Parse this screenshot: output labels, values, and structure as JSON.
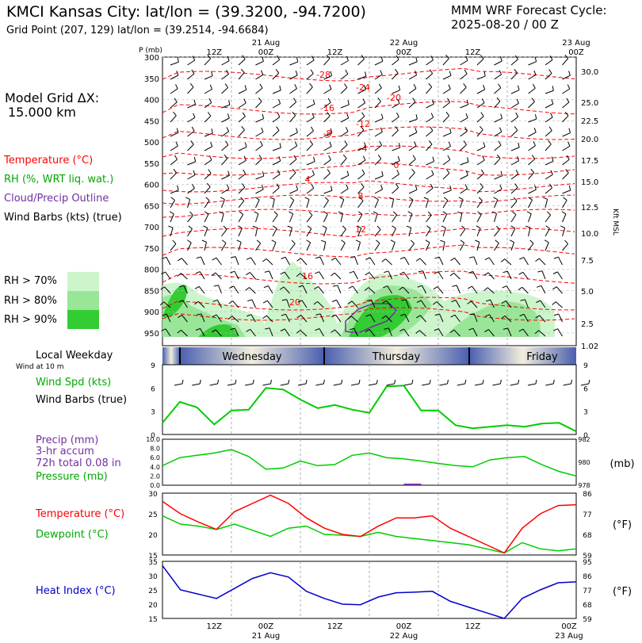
{
  "header": {
    "title": "KMCI Kansas City:  lat/lon = (39.3200, -94.7200)",
    "subtitle": "Grid Point (207, 129) lat/lon = (39.2514, -94.6684)",
    "model_line1": "MMM WRF Forecast Cycle:",
    "model_line2": "2025-08-20 / 00  Z"
  },
  "left_panel": {
    "grid_dx_line1": "Model Grid ΔX:",
    "grid_dx_line2": "15.000 km",
    "temperature_label": "Temperature (°C)",
    "rh_label": "RH (%, WRT liq. wat.)",
    "cloud_label": "Cloud/Precip Outline",
    "wind_label": "Wind Barbs (kts) (true)",
    "rh70": "RH > 70%",
    "rh80": "RH > 80%",
    "rh90": "RH > 90%",
    "weekday_label": "Local Weekday",
    "wind10_label": "Wind at 10 m",
    "wspd_label": "Wind Spd (kts)",
    "wbarb_label": "Wind Barbs (true)",
    "precip_label": "Precip (mm)",
    "accum_label": "3-hr accum",
    "total_label": "72h total 0.08 in",
    "pressure_label": "Pressure (mb)",
    "temp2_label": "Temperature (°C)",
    "dew_label": "Dewpoint (°C)",
    "heat_label": "Heat Index (°C)"
  },
  "colors": {
    "temperature": "#ff0000",
    "rh": "#00cc00",
    "cloud": "#7030a0",
    "pressure": "#00cc00",
    "dewpoint": "#00cc00",
    "heat": "#0000cc",
    "rh70": "#ccf5cc",
    "rh80": "#99e699",
    "rh90": "#33cc33"
  },
  "chart_data": [
    {
      "type": "line",
      "name": "cross-section",
      "pressure_axis_label": "P (mb)",
      "pressure_levels": [
        300,
        350,
        400,
        450,
        500,
        550,
        600,
        650,
        700,
        750,
        800,
        850,
        900,
        950
      ],
      "height_axis_label": "Kft MSL",
      "height_ticks": [
        "30.0",
        "25.0",
        "22.5",
        "20.0",
        "17.5",
        "15.0",
        "12.5",
        "10.0",
        "7.5",
        "5.0",
        "2.5",
        "1.02"
      ],
      "time_top_ticks": [
        "12Z",
        "21 Aug",
        "00Z",
        "12Z",
        "22 Aug",
        "00Z",
        "12Z",
        "23 Aug",
        "00Z"
      ],
      "temperature_contour_labels": [
        "-28",
        "-24",
        "-20",
        "-16",
        "-12",
        "-8",
        "-4",
        "0",
        "4",
        "8",
        "12",
        "16",
        "20"
      ],
      "weekdays": [
        "Wednesday",
        "Thursday",
        "Friday"
      ]
    },
    {
      "type": "line",
      "name": "wind speed",
      "y_ticks": [
        0,
        3,
        6,
        9
      ],
      "ylim": [
        0,
        9
      ],
      "x_hours": [
        0,
        3,
        6,
        9,
        12,
        15,
        18,
        21,
        24,
        27,
        30,
        33,
        36,
        39,
        42,
        45,
        48,
        51,
        54,
        57,
        60,
        63,
        66,
        69,
        72
      ],
      "values": [
        1.5,
        4.2,
        3.5,
        1.3,
        3.1,
        3.2,
        6.0,
        5.8,
        4.5,
        3.4,
        3.8,
        3.2,
        2.8,
        6.2,
        6.3,
        3.1,
        3.1,
        1.2,
        0.8,
        1.0,
        1.2,
        1.0,
        1.4,
        1.5,
        0.4
      ]
    },
    {
      "type": "line",
      "name": "precip & pressure",
      "precip_ticks": [
        "0.0",
        "2.0",
        "4.0",
        "6.0",
        "8.0",
        "10.0"
      ],
      "pressure_ticks": [
        978,
        980,
        982
      ],
      "pressure_axis_label": "(mb)",
      "pressure_values": [
        979.7,
        980.4,
        980.6,
        980.8,
        981.1,
        980.5,
        979.4,
        979.5,
        980.1,
        979.7,
        979.8,
        980.6,
        980.8,
        980.4,
        980.3,
        980.1,
        979.9,
        979.7,
        979.6,
        980.2,
        980.4,
        980.5,
        979.8,
        979.2,
        978.8
      ],
      "precip_values": [
        0,
        0,
        0,
        0,
        0,
        0,
        0,
        0,
        0,
        0,
        0,
        0,
        0,
        0,
        0.1,
        0,
        0,
        0,
        0,
        0,
        0,
        0,
        0,
        0,
        0
      ]
    },
    {
      "type": "line",
      "name": "temperature & dewpoint",
      "y_ticks_c": [
        15,
        20,
        25,
        30
      ],
      "y_ticks_f": [
        59,
        68,
        77,
        86
      ],
      "right_axis_label": "(°F)",
      "temperature": [
        28.0,
        25.0,
        23.0,
        21.2,
        25.5,
        27.5,
        29.5,
        27.5,
        24.0,
        21.5,
        20.0,
        19.5,
        22.0,
        24.0,
        24.0,
        24.5,
        21.5,
        19.5,
        17.5,
        15.5,
        21.5,
        25.0,
        27.0,
        27.2
      ],
      "dewpoint": [
        24.5,
        22.5,
        22.0,
        21.2,
        22.5,
        21.0,
        19.5,
        21.5,
        22.0,
        20.0,
        19.8,
        19.5,
        20.5,
        19.5,
        19.0,
        18.5,
        18.0,
        17.5,
        16.5,
        15.5,
        18.0,
        16.5,
        16.0,
        16.5
      ]
    },
    {
      "type": "line",
      "name": "heat index",
      "y_ticks_c": [
        15,
        20,
        25,
        30,
        35
      ],
      "y_ticks_f": [
        59,
        68,
        77,
        86,
        95
      ],
      "right_axis_label": "(°F)",
      "time_bottom_ticks": [
        "12Z",
        "00Z",
        "21 Aug",
        "12Z",
        "00Z",
        "22 Aug",
        "12Z",
        "00Z",
        "23 Aug"
      ],
      "values": [
        33.5,
        25.0,
        23.5,
        22.0,
        25.5,
        29.0,
        31.0,
        29.5,
        24.5,
        22.0,
        20.0,
        19.8,
        22.5,
        24.0,
        24.2,
        24.5,
        21.0,
        19.0,
        17.0,
        15.0,
        22.0,
        25.0,
        27.5,
        27.8
      ]
    }
  ]
}
